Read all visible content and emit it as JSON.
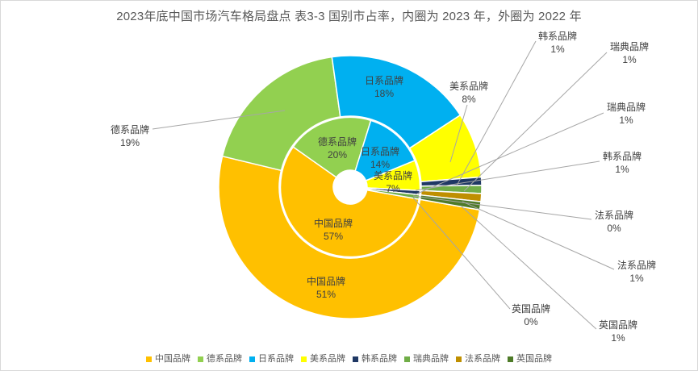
{
  "title": "2023年底中国市场汽车格局盘点 表3-3 国别市占率，内圈为 2023 年，外圈为 2022 年",
  "colors": {
    "title_text": "#595959",
    "label_text": "#404040",
    "leader_line": "#A6A6A6",
    "slice_border": "#FFFFFF",
    "canvas_border": "#D8D8D8",
    "background": "#FFFFFF"
  },
  "chart_data": {
    "type": "pie",
    "subtype": "nested-doughnut",
    "title": "2023年底中国市场汽车格局盘点 表3-3 国别市占率，内圈为 2023 年，外圈为 2022 年",
    "categories": [
      "中国品牌",
      "德系品牌",
      "日系品牌",
      "美系品牌",
      "韩系品牌",
      "瑞典品牌",
      "法系品牌",
      "英国品牌"
    ],
    "palette": [
      "#FFC000",
      "#92D050",
      "#00B0F0",
      "#FFFF00",
      "#1F3864",
      "#70AD47",
      "#BF8F00",
      "#4E7B28"
    ],
    "series": [
      {
        "name": "2023 年（内圈）",
        "values": [
          57,
          20,
          14,
          7,
          1,
          1,
          0,
          0
        ]
      },
      {
        "name": "2022 年（外圈）",
        "values": [
          51,
          19,
          18,
          8,
          1,
          1,
          1,
          1
        ]
      }
    ],
    "start_angle_deg": 100,
    "direction": "clockwise",
    "value_suffix": "%",
    "legend_position": "bottom",
    "grid": false
  },
  "legend": {
    "items": [
      {
        "label": "中国品牌",
        "color": "#FFC000"
      },
      {
        "label": "德系品牌",
        "color": "#92D050"
      },
      {
        "label": "日系品牌",
        "color": "#00B0F0"
      },
      {
        "label": "美系品牌",
        "color": "#FFFF00"
      },
      {
        "label": "韩系品牌",
        "color": "#1F3864"
      },
      {
        "label": "瑞典品牌",
        "color": "#70AD47"
      },
      {
        "label": "法系品牌",
        "color": "#BF8F00"
      },
      {
        "label": "英国品牌",
        "color": "#4E7B28"
      }
    ]
  }
}
